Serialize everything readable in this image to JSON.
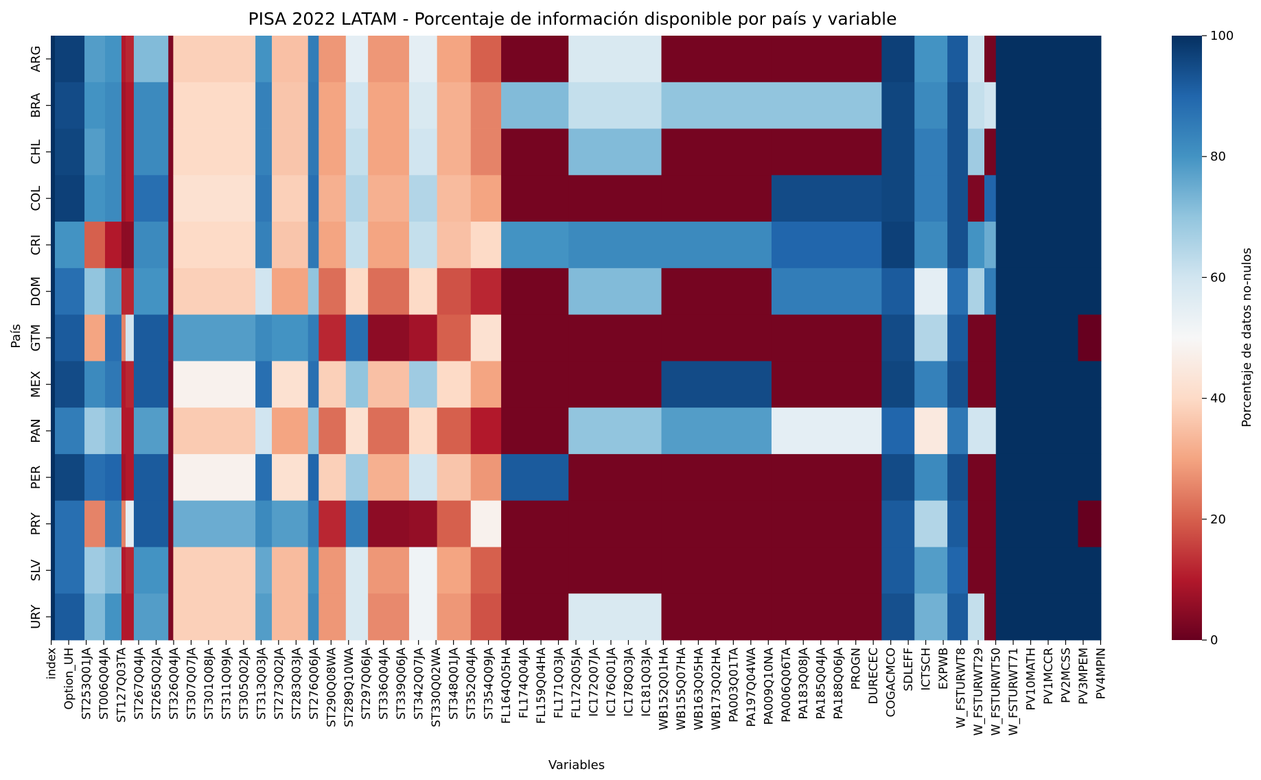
{
  "chart_data": {
    "type": "heatmap",
    "title": "PISA 2022 LATAM - Porcentaje de información disponible por país y variable",
    "xlabel": "Variables",
    "ylabel": "País",
    "colorbar": {
      "label": "Porcentaje de datos no-nulos",
      "range": [
        0,
        100
      ],
      "ticks": [
        0,
        20,
        40,
        60,
        80,
        100
      ],
      "colormap": "RdBu"
    },
    "rows": [
      "ARG",
      "BRA",
      "CHL",
      "COL",
      "CRI",
      "DOM",
      "GTM",
      "MEX",
      "PAN",
      "PER",
      "PRY",
      "SLV",
      "URY"
    ],
    "x_tick_labels": [
      "index",
      "Option_UH",
      "ST253Q01JA",
      "ST006Q04JA",
      "ST127Q03TA",
      "ST267Q04JA",
      "ST265Q02JA",
      "ST326Q04JA",
      "ST307Q07JA",
      "ST301Q08JA",
      "ST311Q09JA",
      "ST305Q02JA",
      "ST313Q03JA",
      "ST273Q02JA",
      "ST283Q03JA",
      "ST276Q06JA",
      "ST290Q08WA",
      "ST289Q10WA",
      "ST297Q06JA",
      "ST336Q04JA",
      "ST339Q06JA",
      "ST342Q07JA",
      "ST330Q02WA",
      "ST348Q01JA",
      "ST352Q04JA",
      "ST354Q09JA",
      "FL164Q05HA",
      "FL174Q04JA",
      "FL159Q04HA",
      "FL171Q03JA",
      "FL172Q05JA",
      "IC172Q07JA",
      "IC176Q01JA",
      "IC178Q03JA",
      "IC181Q03JA",
      "WB152Q01HA",
      "WB155Q07HA",
      "WB163Q05HA",
      "WB173Q02HA",
      "PA003Q01TA",
      "PA197Q04WA",
      "PA009Q10NA",
      "PA006Q06TA",
      "PA183Q08JA",
      "PA185Q04JA",
      "PA188Q06JA",
      "PROGN",
      "DURECEC",
      "COGACMCO",
      "SDLEFF",
      "ICTSCH",
      "EXPWB",
      "W_FSTURWT8",
      "W_FSTURWT29",
      "W_FSTURWT50",
      "W_FSTURWT71",
      "PV10MATH",
      "PV1MCCR",
      "PV2MCSS",
      "PV3MPEM",
      "PV4MPIN"
    ],
    "n_columns": 1278,
    "segment_note": "Each segment [from_column, to_column, row values in row order] gives the approximate percentage of non-null data.",
    "segments": [
      [
        0,
        4,
        [
          100,
          100,
          100,
          100,
          100,
          100,
          100,
          100,
          100,
          100,
          100,
          100,
          100
        ]
      ],
      [
        5,
        40,
        [
          97,
          95,
          96,
          97,
          80,
          88,
          92,
          95,
          85,
          96,
          88,
          88,
          92
        ]
      ],
      [
        41,
        65,
        [
          78,
          80,
          78,
          80,
          20,
          70,
          30,
          82,
          68,
          88,
          25,
          68,
          72
        ]
      ],
      [
        66,
        85,
        [
          80,
          82,
          82,
          82,
          10,
          78,
          88,
          86,
          72,
          90,
          85,
          72,
          80
        ]
      ],
      [
        86,
        90,
        [
          10,
          8,
          8,
          8,
          5,
          12,
          25,
          10,
          10,
          8,
          25,
          10,
          10
        ]
      ],
      [
        91,
        100,
        [
          12,
          10,
          10,
          10,
          5,
          12,
          60,
          12,
          10,
          10,
          55,
          12,
          10
        ]
      ],
      [
        101,
        142,
        [
          72,
          82,
          82,
          88,
          82,
          80,
          92,
          92,
          78,
          92,
          92,
          80,
          78
        ]
      ],
      [
        143,
        148,
        [
          3,
          3,
          3,
          3,
          3,
          3,
          5,
          3,
          3,
          3,
          3,
          3,
          3
        ]
      ],
      [
        149,
        248,
        [
          38,
          40,
          40,
          42,
          40,
          38,
          78,
          48,
          37,
          48,
          75,
          38,
          38
        ]
      ],
      [
        249,
        268,
        [
          80,
          84,
          84,
          86,
          84,
          60,
          82,
          88,
          60,
          88,
          82,
          76,
          78
        ]
      ],
      [
        269,
        312,
        [
          35,
          36,
          36,
          38,
          36,
          30,
          80,
          42,
          30,
          42,
          78,
          34,
          34
        ]
      ],
      [
        313,
        325,
        [
          85,
          86,
          86,
          88,
          86,
          70,
          85,
          88,
          70,
          90,
          85,
          80,
          82
        ]
      ],
      [
        326,
        358,
        [
          28,
          30,
          30,
          32,
          30,
          22,
          12,
          38,
          22,
          38,
          12,
          28,
          28
        ]
      ],
      [
        359,
        385,
        [
          55,
          60,
          62,
          65,
          62,
          40,
          88,
          70,
          42,
          68,
          85,
          58,
          58
        ]
      ],
      [
        386,
        435,
        [
          28,
          30,
          30,
          32,
          30,
          22,
          5,
          35,
          22,
          32,
          5,
          28,
          26
        ]
      ],
      [
        436,
        469,
        [
          55,
          58,
          60,
          65,
          62,
          40,
          8,
          68,
          40,
          60,
          6,
          52,
          52
        ]
      ],
      [
        470,
        510,
        [
          30,
          32,
          32,
          34,
          35,
          18,
          20,
          40,
          20,
          36,
          20,
          30,
          28
        ]
      ],
      [
        511,
        547,
        [
          20,
          25,
          25,
          30,
          40,
          12,
          42,
          30,
          10,
          28,
          48,
          20,
          18
        ]
      ],
      [
        548,
        629,
        [
          2,
          72,
          2,
          2,
          80,
          2,
          2,
          2,
          2,
          92,
          2,
          2,
          2
        ]
      ],
      [
        630,
        742,
        [
          58,
          62,
          72,
          2,
          82,
          72,
          2,
          2,
          70,
          2,
          2,
          2,
          58
        ]
      ],
      [
        743,
        876,
        [
          2,
          70,
          2,
          2,
          82,
          2,
          2,
          95,
          78,
          2,
          2,
          2,
          2
        ]
      ],
      [
        877,
        1010,
        [
          2,
          70,
          2,
          95,
          90,
          85,
          2,
          2,
          55,
          2,
          2,
          2,
          2
        ]
      ],
      [
        1011,
        1050,
        [
          97,
          96,
          96,
          96,
          97,
          92,
          95,
          96,
          90,
          95,
          92,
          92,
          94
        ]
      ],
      [
        1051,
        1090,
        [
          80,
          82,
          85,
          85,
          82,
          55,
          65,
          84,
          45,
          82,
          65,
          78,
          74
        ]
      ],
      [
        1091,
        1115,
        [
          92,
          94,
          94,
          94,
          94,
          88,
          92,
          94,
          86,
          94,
          92,
          90,
          92
        ]
      ],
      [
        1116,
        1135,
        [
          60,
          62,
          68,
          3,
          80,
          66,
          2,
          2,
          60,
          2,
          2,
          2,
          62
        ]
      ],
      [
        1136,
        1149,
        [
          2,
          60,
          2,
          90,
          75,
          85,
          2,
          2,
          60,
          2,
          2,
          2,
          2
        ]
      ],
      [
        1150,
        1249,
        [
          100,
          100,
          100,
          100,
          100,
          100,
          100,
          100,
          100,
          100,
          100,
          100,
          100
        ]
      ],
      [
        1250,
        1277,
        [
          100,
          100,
          100,
          100,
          100,
          100,
          0,
          100,
          100,
          100,
          0,
          100,
          100
        ]
      ]
    ]
  }
}
